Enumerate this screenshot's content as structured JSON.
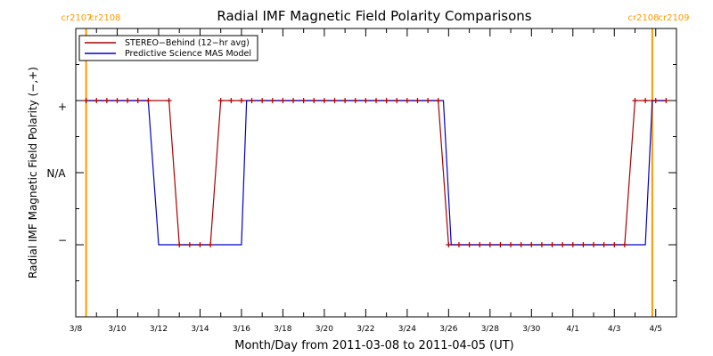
{
  "chart_data": {
    "type": "line",
    "title": "Radial IMF Magnetic Field Polarity Comparisons",
    "xlabel": "Month/Day from 2011-03-08 to 2011-04-05 (UT)",
    "ylabel": "Radial IMF Magnetic Field Polarity (−,+)",
    "x_ticks": [
      "3/8",
      "3/10",
      "3/12",
      "3/14",
      "3/16",
      "3/18",
      "3/20",
      "3/22",
      "3/24",
      "3/26",
      "3/28",
      "3/30",
      "4/1",
      "4/3",
      "4/5"
    ],
    "xlim": [
      "2011-03-08",
      "2011-04-06"
    ],
    "y_ticks": [
      "+",
      "N/A",
      "−"
    ],
    "ylim": [
      -2,
      2
    ],
    "legend": {
      "position": "top-left"
    },
    "carrington": [
      {
        "x": "2011-03-08T12:00",
        "labels": [
          "cr2107",
          "cr2108"
        ]
      },
      {
        "x": "2011-04-04T20:00",
        "labels": [
          "cr2108",
          "cr2109"
        ]
      }
    ],
    "series": [
      {
        "name": "STEREO−Behind (12−hr avg)",
        "color": "#aa0000",
        "markers": true,
        "points": [
          [
            "2011-03-08T12:00",
            1
          ],
          [
            "2011-03-09T00:00",
            1
          ],
          [
            "2011-03-09T12:00",
            1
          ],
          [
            "2011-03-10T00:00",
            1
          ],
          [
            "2011-03-10T12:00",
            1
          ],
          [
            "2011-03-11T00:00",
            1
          ],
          [
            "2011-03-11T12:00",
            1
          ],
          [
            "2011-03-12T12:00",
            1
          ],
          [
            "2011-03-13T00:00",
            -1
          ],
          [
            "2011-03-13T12:00",
            -1
          ],
          [
            "2011-03-14T00:00",
            -1
          ],
          [
            "2011-03-14T12:00",
            -1
          ],
          [
            "2011-03-15T00:00",
            1
          ],
          [
            "2011-03-15T12:00",
            1
          ],
          [
            "2011-03-16T00:00",
            1
          ],
          [
            "2011-03-16T12:00",
            1
          ],
          [
            "2011-03-17T00:00",
            1
          ],
          [
            "2011-03-17T12:00",
            1
          ],
          [
            "2011-03-18T00:00",
            1
          ],
          [
            "2011-03-18T12:00",
            1
          ],
          [
            "2011-03-19T00:00",
            1
          ],
          [
            "2011-03-19T12:00",
            1
          ],
          [
            "2011-03-20T00:00",
            1
          ],
          [
            "2011-03-20T12:00",
            1
          ],
          [
            "2011-03-21T00:00",
            1
          ],
          [
            "2011-03-21T12:00",
            1
          ],
          [
            "2011-03-22T00:00",
            1
          ],
          [
            "2011-03-22T12:00",
            1
          ],
          [
            "2011-03-23T00:00",
            1
          ],
          [
            "2011-03-23T12:00",
            1
          ],
          [
            "2011-03-24T00:00",
            1
          ],
          [
            "2011-03-24T12:00",
            1
          ],
          [
            "2011-03-25T00:00",
            1
          ],
          [
            "2011-03-25T12:00",
            1
          ],
          [
            "2011-03-26T00:00",
            -1
          ],
          [
            "2011-03-26T12:00",
            -1
          ],
          [
            "2011-03-27T00:00",
            -1
          ],
          [
            "2011-03-27T12:00",
            -1
          ],
          [
            "2011-03-28T00:00",
            -1
          ],
          [
            "2011-03-28T12:00",
            -1
          ],
          [
            "2011-03-29T00:00",
            -1
          ],
          [
            "2011-03-29T12:00",
            -1
          ],
          [
            "2011-03-30T00:00",
            -1
          ],
          [
            "2011-03-30T12:00",
            -1
          ],
          [
            "2011-03-31T00:00",
            -1
          ],
          [
            "2011-03-31T12:00",
            -1
          ],
          [
            "2011-04-01T00:00",
            -1
          ],
          [
            "2011-04-01T12:00",
            -1
          ],
          [
            "2011-04-02T00:00",
            -1
          ],
          [
            "2011-04-02T12:00",
            -1
          ],
          [
            "2011-04-03T00:00",
            -1
          ],
          [
            "2011-04-03T12:00",
            -1
          ],
          [
            "2011-04-04T00:00",
            1
          ],
          [
            "2011-04-04T12:00",
            1
          ],
          [
            "2011-04-05T00:00",
            1
          ],
          [
            "2011-04-05T12:00",
            1
          ]
        ]
      },
      {
        "name": "Predictive Science MAS Model",
        "color": "#0000cc",
        "markers": false,
        "points": [
          [
            "2011-03-08T12:00",
            1
          ],
          [
            "2011-03-11T12:00",
            1
          ],
          [
            "2011-03-12T00:00",
            -1
          ],
          [
            "2011-03-16T00:00",
            -1
          ],
          [
            "2011-03-16T06:00",
            1
          ],
          [
            "2011-03-25T18:00",
            1
          ],
          [
            "2011-03-26T03:00",
            -1
          ],
          [
            "2011-04-04T12:00",
            -1
          ],
          [
            "2011-04-04T20:00",
            1
          ],
          [
            "2011-04-05T12:00",
            1
          ]
        ]
      }
    ]
  }
}
